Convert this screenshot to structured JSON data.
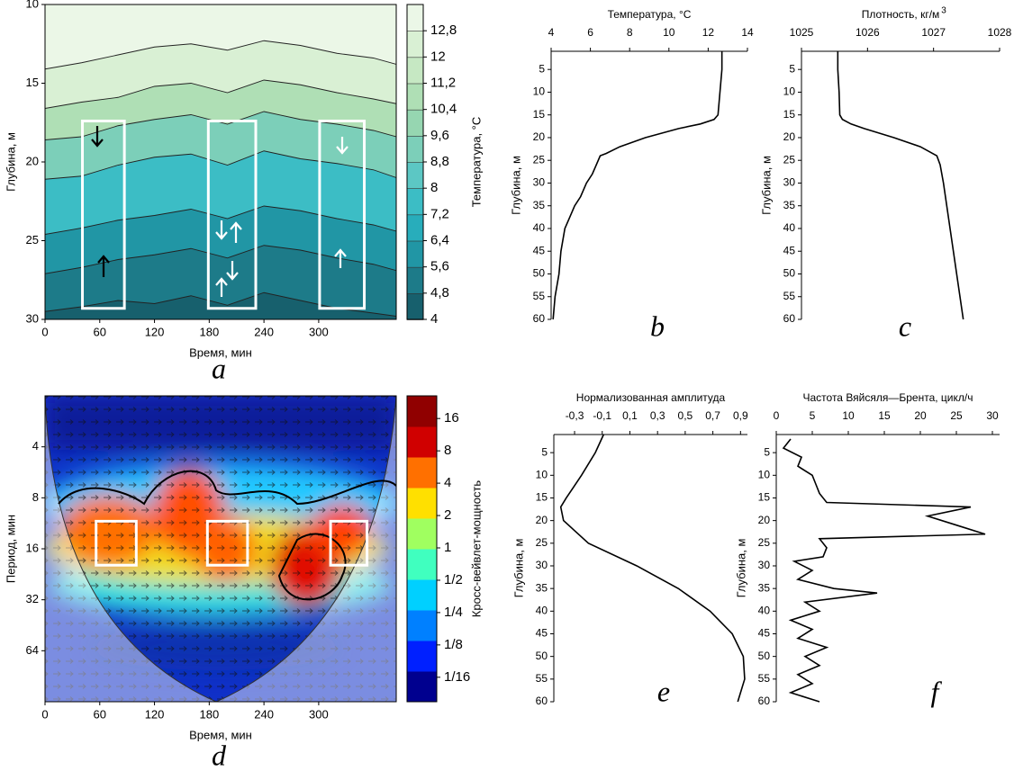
{
  "chart_data": [
    {
      "type": "contour",
      "panel": "a",
      "xlabel": "Время, мин",
      "ylabel": "Глубина, м",
      "colorbar_label": "Температура, °С",
      "xlim": [
        0,
        385
      ],
      "xticks": [
        0,
        60,
        120,
        180,
        240,
        300
      ],
      "ylim": [
        30,
        10
      ],
      "yticks": [
        10,
        15,
        20,
        25,
        30
      ],
      "clim": [
        4,
        13.6
      ],
      "cticks": [
        4,
        {
          "value": 4.8,
          "label": "4,8"
        },
        {
          "value": 5.6,
          "label": "5,6"
        },
        {
          "value": 6.4,
          "label": "6,4"
        },
        {
          "value": 7.2,
          "label": "7,2"
        },
        8,
        {
          "value": 8.8,
          "label": "8,8"
        },
        {
          "value": 9.6,
          "label": "9,6"
        },
        {
          "value": 10.4,
          "label": "10,4"
        },
        {
          "value": 11.2,
          "label": "11,2"
        },
        12,
        {
          "value": 12.8,
          "label": "12,8"
        }
      ],
      "colors": [
        "#17606d",
        "#1d7b89",
        "#2196a5",
        "#28adbb",
        "#3cbdc5",
        "#5cc7c4",
        "#7ccfb9",
        "#96d6b1",
        "#afdfb5",
        "#c6e8c3",
        "#d9f0d4",
        "#ebf7e7"
      ],
      "x": [
        0,
        40,
        80,
        120,
        160,
        200,
        240,
        280,
        320,
        360,
        385
      ],
      "isolines": [
        {
          "level": 12.8,
          "values": [
            14.1,
            13.7,
            13.2,
            12.7,
            12.5,
            12.9,
            12.3,
            12.6,
            13.1,
            13.4,
            13.8
          ]
        },
        {
          "level": 11.2,
          "values": [
            16.6,
            16.2,
            15.9,
            15.2,
            15,
            15.6,
            14.8,
            15.1,
            15.6,
            16,
            16.3
          ]
        },
        {
          "level": 9.6,
          "values": [
            18.6,
            18.4,
            17.7,
            17.3,
            17,
            17.6,
            16.8,
            17.3,
            17.6,
            18,
            18.4
          ]
        },
        {
          "level": 8,
          "values": [
            21.1,
            20.9,
            20.2,
            19.7,
            19.5,
            20.2,
            19.3,
            19.8,
            20.1,
            20.5,
            21
          ]
        },
        {
          "level": 6.4,
          "values": [
            24.6,
            24.2,
            23.7,
            23.4,
            23,
            23.6,
            22.8,
            23.1,
            23.6,
            24,
            24.4
          ]
        },
        {
          "level": 5.6,
          "values": [
            27.1,
            26.7,
            26.2,
            25.9,
            25.5,
            26.1,
            25.3,
            25.6,
            26.1,
            26.5,
            26.9
          ]
        },
        {
          "level": 4.8,
          "values": [
            29.5,
            29.2,
            28.8,
            29,
            28.5,
            29.1,
            28.3,
            28.8,
            29.3,
            29.6,
            29.8
          ]
        }
      ],
      "boxes": [
        {
          "x": [
            41,
            87
          ],
          "y": [
            17.4,
            29.3
          ]
        },
        {
          "x": [
            179,
            231
          ],
          "y": [
            17.4,
            29.3
          ]
        },
        {
          "x": [
            301,
            350
          ],
          "y": [
            17.4,
            29.3
          ]
        }
      ]
    },
    {
      "type": "profile",
      "panel": "b",
      "title": "Температура, °С",
      "ylabel": "Глубина, м",
      "xlim": [
        4,
        14
      ],
      "xticks": [
        4,
        6,
        8,
        10,
        12,
        14
      ],
      "ylim": [
        60,
        1
      ],
      "yticks": [
        5,
        10,
        15,
        20,
        25,
        30,
        35,
        40,
        45,
        50,
        55,
        60
      ],
      "depth": [
        1,
        5,
        10,
        15,
        16,
        17,
        18,
        20,
        22,
        23.5,
        24,
        26,
        28,
        30,
        33,
        35,
        38,
        40,
        45,
        50,
        55,
        60
      ],
      "values": [
        12.7,
        12.7,
        12.6,
        12.5,
        12.3,
        11.6,
        10.5,
        8.8,
        7.5,
        6.8,
        6.5,
        6.3,
        6.1,
        5.8,
        5.5,
        5.2,
        4.9,
        4.7,
        4.5,
        4.4,
        4.2,
        4.1
      ],
      "color": "#000000"
    },
    {
      "type": "profile",
      "panel": "c",
      "title": "Плотность, кг/м",
      "title_superscript": "3",
      "ylabel": "Глубина, м",
      "xlim": [
        1025,
        1028
      ],
      "xticks": [
        1025,
        1026,
        1027,
        1028
      ],
      "ylim": [
        60,
        1
      ],
      "yticks": [
        5,
        10,
        15,
        20,
        25,
        30,
        35,
        40,
        45,
        50,
        55,
        60
      ],
      "depth": [
        1,
        5,
        10,
        15,
        16,
        17,
        18,
        20,
        22,
        24,
        26,
        30,
        35,
        40,
        45,
        50,
        55,
        60
      ],
      "values": [
        1025.55,
        1025.55,
        1025.57,
        1025.58,
        1025.62,
        1025.75,
        1025.95,
        1026.4,
        1026.8,
        1027.05,
        1027.1,
        1027.15,
        1027.2,
        1027.25,
        1027.3,
        1027.35,
        1027.4,
        1027.45
      ],
      "color": "#000000"
    },
    {
      "type": "wavelet",
      "panel": "d",
      "xlabel": "Время, мин",
      "ylabel": "Период, мин",
      "colorbar_label": "Кросс-вейвлет-мощность",
      "xlim": [
        0,
        385
      ],
      "xticks": [
        0,
        60,
        120,
        180,
        240,
        300
      ],
      "ylim": [
        128,
        2
      ],
      "yticks": [
        4,
        8,
        16,
        32,
        64
      ],
      "log_y": true,
      "clim": [
        0.037,
        26
      ],
      "log_c": true,
      "cticks": [
        16,
        8,
        4,
        2,
        1,
        {
          "value": 0.5,
          "label": "1/2"
        },
        {
          "value": 0.25,
          "label": "1/4"
        },
        {
          "value": 0.125,
          "label": "1/8"
        },
        {
          "value": 0.0625,
          "label": "1/16"
        }
      ],
      "colors": [
        "#00008f",
        "#0020ff",
        "#0080ff",
        "#00d0ff",
        "#40ffbf",
        "#a0ff60",
        "#ffe000",
        "#ff7000",
        "#d00000",
        "#900000"
      ],
      "boxes": [
        {
          "x": [
            56,
            100
          ],
          "y": [
            11,
            20
          ]
        },
        {
          "x": [
            178,
            222
          ],
          "y": [
            11,
            20
          ]
        },
        {
          "x": [
            313,
            353
          ],
          "y": [
            11,
            20
          ]
        }
      ]
    },
    {
      "type": "profile",
      "panel": "e",
      "title": "Нормализованная амплитуда",
      "ylabel": "Глубина, м",
      "xlim": [
        -0.45,
        0.95
      ],
      "xticks": [
        {
          "value": -0.3,
          "label": "-0,3"
        },
        {
          "value": -0.1,
          "label": "-0,1"
        },
        {
          "value": 0.1,
          "label": "0,1"
        },
        {
          "value": 0.3,
          "label": "0,3"
        },
        {
          "value": 0.5,
          "label": "0,5"
        },
        {
          "value": 0.7,
          "label": "0,7"
        },
        {
          "value": 0.9,
          "label": "0,9"
        }
      ],
      "ylim": [
        60,
        1
      ],
      "yticks": [
        5,
        10,
        15,
        20,
        25,
        30,
        35,
        40,
        45,
        50,
        55,
        60
      ],
      "depth": [
        1,
        5,
        10,
        15,
        17,
        20,
        25,
        30,
        35,
        40,
        45,
        50,
        55,
        60
      ],
      "values": [
        -0.09,
        -0.15,
        -0.25,
        -0.36,
        -0.4,
        -0.38,
        -0.2,
        0.15,
        0.45,
        0.68,
        0.84,
        0.92,
        0.93,
        0.88
      ],
      "color": "#000000"
    },
    {
      "type": "profile",
      "panel": "f",
      "title": "Частота Вяйсяля—Брента, цикл/ч",
      "ylabel": "Глубина, м",
      "xlim": [
        0,
        31
      ],
      "xticks": [
        0,
        5,
        10,
        15,
        20,
        25,
        30
      ],
      "ylim": [
        60,
        1
      ],
      "yticks": [
        5,
        10,
        15,
        20,
        25,
        30,
        35,
        40,
        45,
        50,
        55,
        60
      ],
      "depth": [
        2,
        4,
        6,
        8,
        10,
        12,
        14,
        16,
        17,
        19,
        21,
        23,
        24,
        26,
        28,
        29,
        31,
        33,
        35,
        36,
        38,
        40,
        42,
        44,
        46,
        48,
        50,
        52,
        54,
        56,
        58,
        60
      ],
      "values": [
        2,
        1,
        3.5,
        3,
        5,
        5.5,
        6,
        7,
        27,
        21,
        25,
        29,
        6,
        7,
        6.5,
        2.5,
        5,
        3,
        8,
        14,
        4,
        6,
        2,
        5,
        3,
        7,
        4,
        6,
        3,
        5,
        2,
        6
      ],
      "color": "#000000"
    }
  ]
}
